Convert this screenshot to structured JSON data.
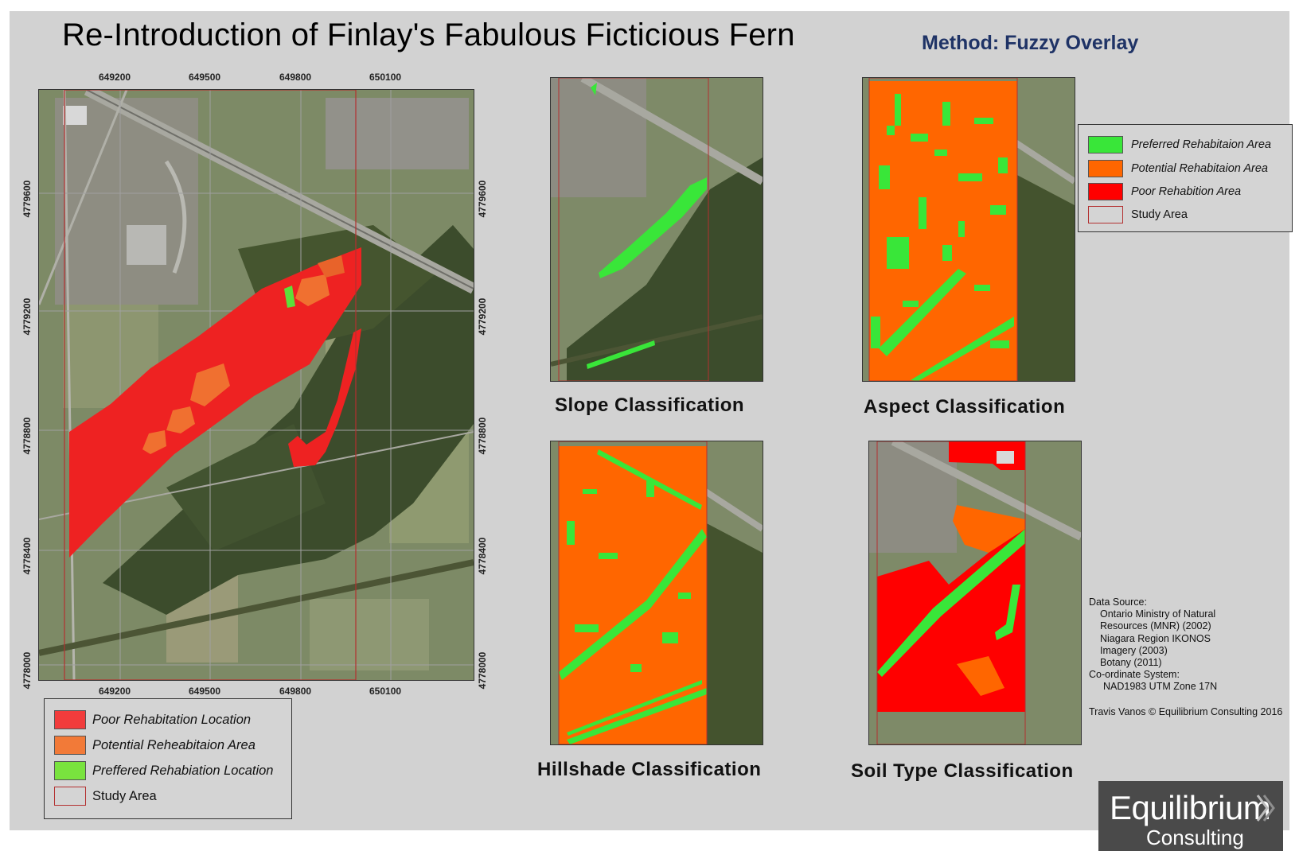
{
  "title": "Re-Introduction of Finlay's Fabulous Ficticious Fern",
  "method": "Method: Fuzzy Overlay",
  "colors": {
    "preferred": "#39e639",
    "potential": "#ff6600",
    "poor": "#ff0000",
    "main_poor": "#ee2222",
    "main_potential": "#f07030",
    "main_preferred": "#5ddf3a",
    "study_area": "#b33030",
    "imagery_base": "#7d8a66",
    "forest": "#3c4c2c"
  },
  "main_map": {
    "x_ticks": [
      "649200",
      "649500",
      "649800",
      "650100"
    ],
    "y_ticks": [
      "4779600",
      "4779200",
      "4778800",
      "4778400",
      "4778000"
    ]
  },
  "panels": [
    {
      "caption": "Slope Classification",
      "type": "slope"
    },
    {
      "caption": "Aspect Classification",
      "type": "aspect"
    },
    {
      "caption": "Hillshade Classification",
      "type": "hillshade"
    },
    {
      "caption": "Soil Type Classification",
      "type": "soil"
    }
  ],
  "main_legend": [
    {
      "label": "Poor Rehabitation Location",
      "color": "#f23c3c"
    },
    {
      "label": "Potential Reheabitaion Area",
      "color": "#f27a38"
    },
    {
      "label": "Preffered Rehabiation Location",
      "color": "#79e33e"
    },
    {
      "label": "Study Area",
      "color": "#d4d4d4",
      "border": "#b33030",
      "plain": true
    }
  ],
  "panel_legend": [
    {
      "label": "Preferred Rehabitaion Area",
      "color": "#39e639"
    },
    {
      "label": "Potential Rehabitaion Area",
      "color": "#ff6600"
    },
    {
      "label": "Poor Rehabition Area",
      "color": "#ff0000"
    },
    {
      "label": "Study Area",
      "color": "#d4d4d4",
      "border": "#b33030",
      "plain": true
    }
  ],
  "data_source": {
    "lines": [
      "Data Source:",
      "Ontario Ministry of Natural",
      "Resources (MNR) (2002)",
      "Niagara Region IKONOS",
      "Imagery (2003)",
      "Botany (2011)",
      "Co-ordinate System:",
      "NAD1983 UTM Zone 17N"
    ],
    "credit": "Travis Vanos © Equilibrium Consulting 2016"
  },
  "logo": {
    "line1": "Equilibrium",
    "line2": "Consulting"
  }
}
